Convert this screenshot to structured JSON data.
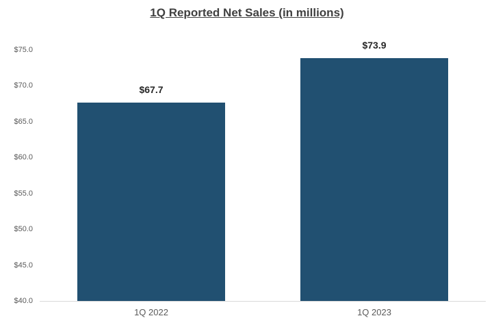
{
  "chart_data": {
    "type": "bar",
    "title": "1Q Reported Net Sales (in millions)",
    "categories": [
      "1Q 2022",
      "1Q 2023"
    ],
    "values": [
      67.7,
      73.9
    ],
    "data_labels": [
      "$67.7",
      "$73.9"
    ],
    "xlabel": "",
    "ylabel": "",
    "ylim": [
      40,
      75
    ],
    "y_ticks": [
      {
        "value": 75,
        "label": "$75.0"
      },
      {
        "value": 70,
        "label": "$70.0"
      },
      {
        "value": 65,
        "label": "$65.0"
      },
      {
        "value": 60,
        "label": "$60.0"
      },
      {
        "value": 55,
        "label": "$55.0"
      },
      {
        "value": 50,
        "label": "$50.0"
      },
      {
        "value": 45,
        "label": "$45.0"
      },
      {
        "value": 40,
        "label": "$40.0"
      }
    ],
    "grid": false,
    "legend": false,
    "colors": {
      "bar_fill": "#215071",
      "axis_line": "#d9d9d9",
      "title_text": "#404040",
      "data_label_text": "#262626",
      "tick_text": "#595959"
    }
  }
}
